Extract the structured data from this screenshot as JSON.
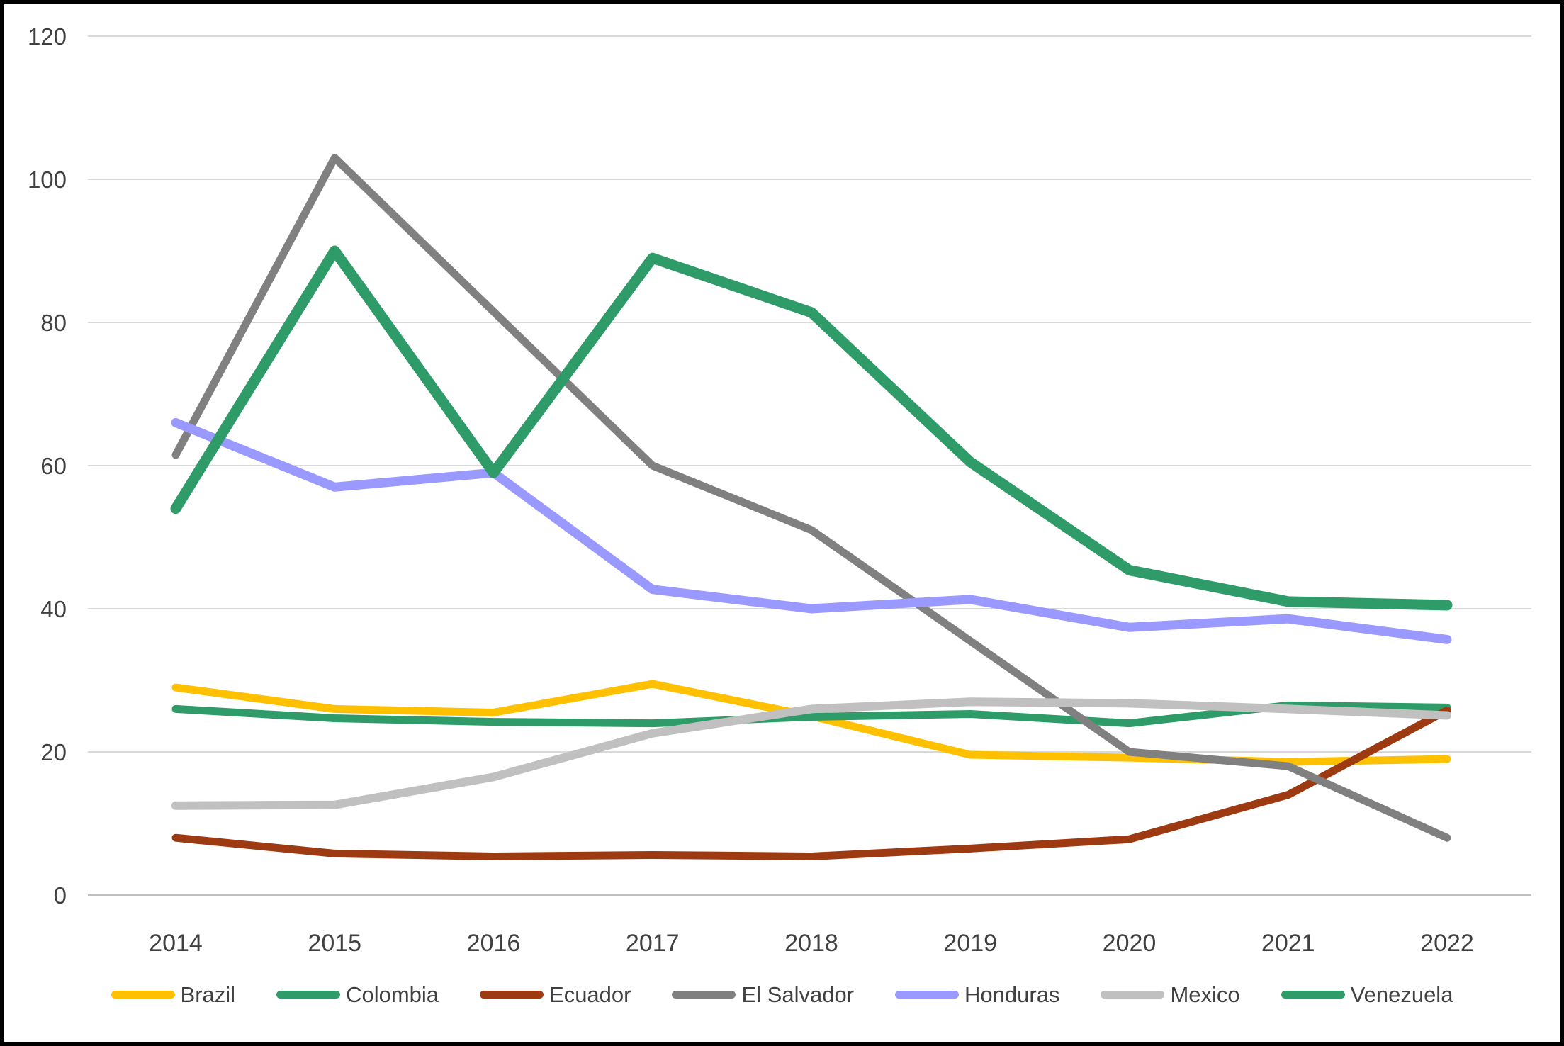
{
  "chart_data": {
    "type": "line",
    "title": "",
    "xlabel": "",
    "ylabel": "",
    "x": [
      2014,
      2015,
      2016,
      2017,
      2018,
      2019,
      2020,
      2021,
      2022
    ],
    "x_tick_labels": [
      "2014",
      "2015",
      "2016",
      "2017",
      "2018",
      "2019",
      "2020",
      "2021",
      "2022"
    ],
    "ylim": [
      0,
      120
    ],
    "ytick_step": 20,
    "y_tick_labels": [
      "0",
      "20",
      "40",
      "60",
      "80",
      "100",
      "120"
    ],
    "grid": "horizontal",
    "legend_position": "bottom",
    "series": [
      {
        "name": "Brazil",
        "color": "#FFC000",
        "values": [
          29,
          26,
          25.5,
          29.5,
          25,
          19.6,
          19.2,
          18.6,
          19
        ]
      },
      {
        "name": "Colombia",
        "color": "#2E9B68",
        "values": [
          26,
          24.7,
          24.2,
          24,
          24.9,
          25.3,
          24,
          26.5,
          26.2
        ]
      },
      {
        "name": "Ecuador",
        "color": "#9E3A12",
        "values": [
          8,
          5.8,
          5.4,
          5.6,
          5.4,
          6.5,
          7.8,
          14,
          25.8
        ]
      },
      {
        "name": "El Salvador",
        "color": "#808080",
        "values": [
          61.5,
          103,
          81.5,
          60,
          51,
          35.5,
          20,
          18,
          8
        ]
      },
      {
        "name": "Honduras",
        "color": "#9999FF",
        "values": [
          66,
          57,
          59,
          42.7,
          40,
          41.3,
          37.4,
          38.6,
          35.7
        ]
      },
      {
        "name": "Mexico",
        "color": "#C0C0C0",
        "values": [
          12.5,
          12.6,
          16.5,
          22.6,
          26,
          27,
          26.8,
          26,
          25.1
        ]
      },
      {
        "name": "Venezuela",
        "color": "#2E9B68",
        "values": [
          54,
          90,
          59,
          89,
          81.4,
          60.5,
          45.4,
          41,
          40.5
        ]
      }
    ],
    "colors": {
      "background": "#FFFFFF",
      "frame_border": "#000000",
      "gridline": "#D9D9D9",
      "axis_line": "#BFBFBF",
      "tick_label": "#404040"
    }
  }
}
